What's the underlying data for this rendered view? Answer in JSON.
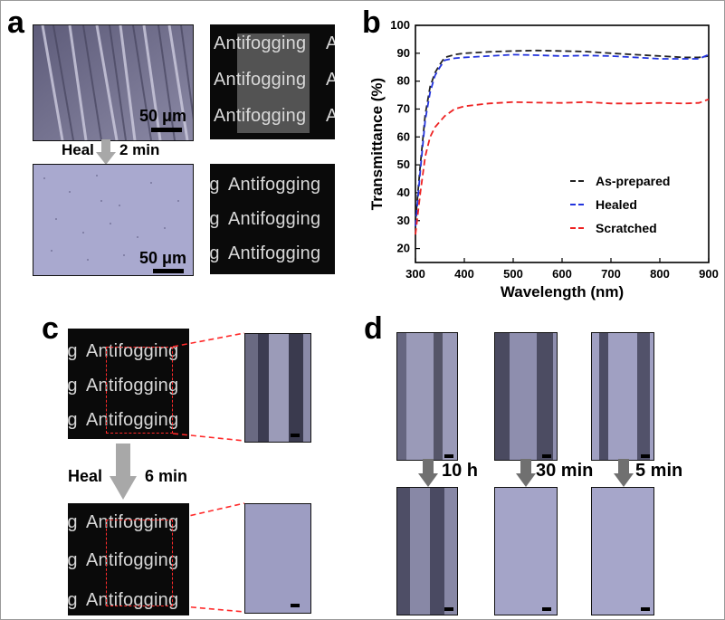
{
  "panels": {
    "a": {
      "letter": "a",
      "scale_label_top": "50 μm",
      "scale_label_bottom": "50 μm",
      "heal_word": "Heal",
      "heal_time": "2 min",
      "photo_word": "Antifogging"
    },
    "b": {
      "letter": "b"
    },
    "c": {
      "letter": "c",
      "heal_word": "Heal",
      "heal_time": "6 min",
      "photo_word": "Antifogging"
    },
    "d": {
      "letter": "d",
      "times": [
        "10 h",
        "30 min",
        "5 min"
      ]
    }
  },
  "chart_data": {
    "type": "line",
    "xlabel": "Wavelength (nm)",
    "ylabel": "Transmittance (%)",
    "xlim": [
      300,
      900
    ],
    "ylim": [
      15,
      100
    ],
    "xticks": [
      300,
      400,
      500,
      600,
      700,
      800,
      900
    ],
    "yticks": [
      20,
      30,
      40,
      50,
      60,
      70,
      80,
      90,
      100
    ],
    "grid": false,
    "legend_position": "lower-right",
    "series": [
      {
        "name": "As-prepared",
        "color": "#222222",
        "style": "dashed",
        "x": [
          300,
          310,
          320,
          330,
          340,
          350,
          360,
          380,
          400,
          450,
          500,
          550,
          600,
          650,
          700,
          750,
          800,
          850,
          880,
          900
        ],
        "y": [
          30,
          50,
          68,
          78,
          83,
          86,
          88.5,
          89.5,
          90,
          90.5,
          90.8,
          91,
          90.8,
          90.6,
          90,
          89.5,
          89,
          88.5,
          88.5,
          89
        ]
      },
      {
        "name": "Healed",
        "color": "#2233dd",
        "style": "dashed",
        "x": [
          300,
          310,
          320,
          330,
          340,
          350,
          360,
          380,
          400,
          450,
          500,
          550,
          600,
          650,
          700,
          750,
          800,
          850,
          880,
          900
        ],
        "y": [
          28,
          48,
          66,
          76,
          82,
          85,
          87.5,
          88.2,
          88.5,
          89,
          89.5,
          89.3,
          89,
          89.2,
          89,
          88.5,
          88,
          88,
          88,
          89.5
        ]
      },
      {
        "name": "Scratched",
        "color": "#ee2222",
        "style": "dashed",
        "x": [
          300,
          310,
          320,
          330,
          340,
          350,
          360,
          380,
          400,
          450,
          500,
          550,
          600,
          650,
          700,
          750,
          800,
          850,
          880,
          900
        ],
        "y": [
          25,
          40,
          53,
          60,
          63.5,
          65.5,
          67.5,
          70,
          71,
          72,
          72.5,
          72.3,
          72.2,
          72.5,
          72,
          72,
          72.2,
          72,
          72.2,
          73.5
        ]
      }
    ]
  }
}
